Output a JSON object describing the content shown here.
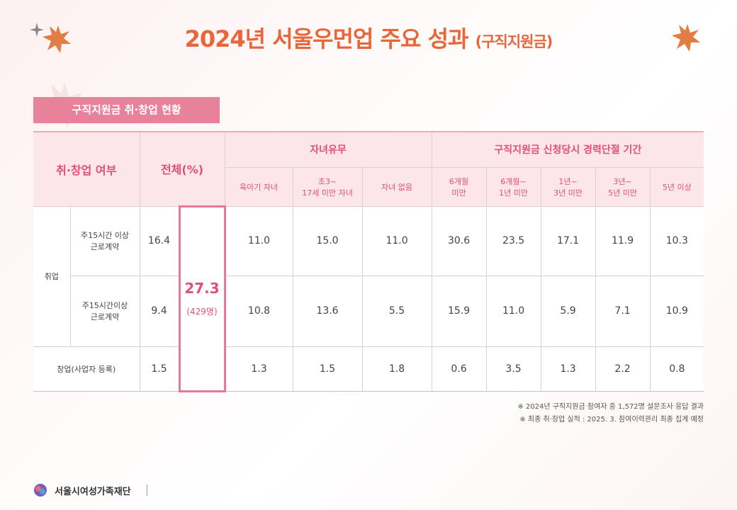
{
  "header": {
    "title": "2024년 서울우먼업 주요 성과",
    "subtitle": "(구직지원금)"
  },
  "section_label": "구직지원금 취·창업 현황",
  "table": {
    "row_header": "취·창업 여부",
    "total_header": "전체(%)",
    "groups": [
      {
        "label": "자녀유무",
        "columns": [
          "육아기 자녀",
          "초3~\n17세 미만 자녀",
          "자녀 없음"
        ]
      },
      {
        "label": "구직지원금 신청당시 경력단절 기간",
        "columns": [
          "6개월\n미만",
          "6개월~\n1년 미만",
          "1년~\n3년 미만",
          "3년~\n5년 미만",
          "5년 이상"
        ]
      }
    ],
    "employment_label": "취업",
    "total": {
      "value": "27.3",
      "count": "(429명)"
    },
    "rows": [
      {
        "label": "주15시간 이상\n근로계약",
        "value": "16.4",
        "values": [
          "11.0",
          "15.0",
          "11.0",
          "30.6",
          "23.5",
          "17.1",
          "11.9",
          "10.3"
        ]
      },
      {
        "label": "주15시간이상\n근로계약",
        "value": "9.4",
        "values": [
          "10.8",
          "13.6",
          "5.5",
          "15.9",
          "11.0",
          "5.9",
          "7.1",
          "10.9"
        ]
      },
      {
        "label": "창업(사업자 등록)",
        "value": "1.5",
        "values": [
          "1.3",
          "1.5",
          "1.8",
          "0.6",
          "3.5",
          "1.3",
          "2.2",
          "0.8"
        ]
      }
    ]
  },
  "notes": [
    "※ 2024년 구직지원금 참여자 중 1,572명 설문조사 응답 결과",
    "※ 최종 취·창업 실적 : 2025. 3. 참여이력관리 최종 집계 예정"
  ],
  "footer": {
    "org": "서울시여성가족재단"
  }
}
